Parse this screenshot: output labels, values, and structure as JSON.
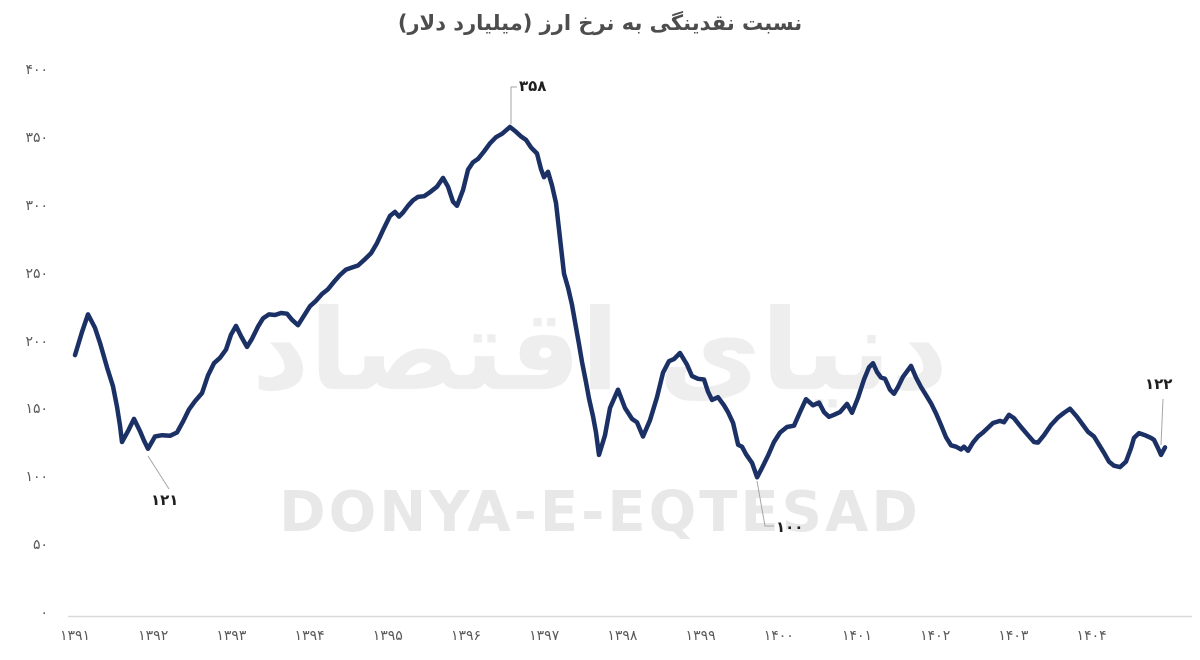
{
  "colors": {
    "line": "#1b3064",
    "title_text": "#4d4d4d",
    "tick_text": "#595959",
    "axis_line": "#d9d9d9",
    "annotation_text": "#1f1f1f",
    "leader_line": "#a6a6a6",
    "watermark": "#e9e9e9",
    "background": "#ffffff"
  },
  "watermark": {
    "persian": "دنیای اقتصاد",
    "latin": "DONYA-E-EQTESAD"
  },
  "chart_data": {
    "type": "line",
    "title": "نسبت نقدینگی به نرخ ارز (میلیارد دلار)",
    "xlabel": "",
    "ylabel": "",
    "grid": false,
    "legend": "none",
    "ylim": [
      0,
      400
    ],
    "xlim": [
      1391,
      1405.3
    ],
    "y_ticks": [
      "۴۰۰",
      "۳۵۰",
      "۳۰۰",
      "۲۵۰",
      "۲۰۰",
      "۱۵۰",
      "۱۰۰",
      "۵۰",
      "۰"
    ],
    "y_tick_values": [
      400,
      350,
      300,
      250,
      200,
      150,
      100,
      50,
      0
    ],
    "x_ticks": [
      "۱۳۹۱",
      "۱۳۹۲",
      "۱۳۹۳",
      "۱۳۹۴",
      "۱۳۹۵",
      "۱۳۹۶",
      "۱۳۹۷",
      "۱۳۹۸",
      "۱۳۹۹",
      "۱۴۰۰",
      "۱۴۰۱",
      "۱۴۰۲",
      "۱۴۰۳",
      "۱۴۰۴"
    ],
    "x_tick_values": [
      1391,
      1392,
      1393,
      1394,
      1395,
      1396,
      1397,
      1398,
      1399,
      1400,
      1401,
      1402,
      1403,
      1404
    ],
    "annotations": {
      "peak": {
        "label": "۳۵۸",
        "value": 358,
        "year": 1396.56
      },
      "dip_1391": {
        "label": "۱۲۱",
        "value": 121,
        "year": 1391.93
      },
      "dip_1399": {
        "label": "۱۰۰",
        "value": 100,
        "year": 1399.72
      },
      "latest": {
        "label": "۱۲۲",
        "value": 122,
        "year": 1404.94
      }
    },
    "points": [
      [
        1391.0,
        190
      ],
      [
        1391.09,
        207
      ],
      [
        1391.166,
        220
      ],
      [
        1391.256,
        210
      ],
      [
        1391.32,
        199
      ],
      [
        1391.409,
        181
      ],
      [
        1391.486,
        167
      ],
      [
        1391.537,
        152
      ],
      [
        1391.575,
        138
      ],
      [
        1391.601,
        126
      ],
      [
        1391.678,
        134
      ],
      [
        1391.754,
        143
      ],
      [
        1391.831,
        134
      ],
      [
        1391.882,
        127
      ],
      [
        1391.934,
        121
      ],
      [
        1392.023,
        130
      ],
      [
        1392.113,
        131
      ],
      [
        1392.215,
        130.5
      ],
      [
        1392.304,
        133
      ],
      [
        1392.381,
        141
      ],
      [
        1392.458,
        150
      ],
      [
        1392.535,
        156
      ],
      [
        1392.624,
        162
      ],
      [
        1392.701,
        175
      ],
      [
        1392.778,
        184
      ],
      [
        1392.854,
        188
      ],
      [
        1392.931,
        194
      ],
      [
        1392.995,
        205
      ],
      [
        1393.059,
        211.5
      ],
      [
        1393.123,
        204
      ],
      [
        1393.2,
        196
      ],
      [
        1393.264,
        202
      ],
      [
        1393.34,
        211
      ],
      [
        1393.404,
        217
      ],
      [
        1393.481,
        220
      ],
      [
        1393.558,
        219.5
      ],
      [
        1393.634,
        221
      ],
      [
        1393.711,
        220.5
      ],
      [
        1393.775,
        216
      ],
      [
        1393.852,
        212
      ],
      [
        1393.929,
        219
      ],
      [
        1394.005,
        226
      ],
      [
        1394.082,
        230
      ],
      [
        1394.159,
        235
      ],
      [
        1394.235,
        238.5
      ],
      [
        1394.312,
        244
      ],
      [
        1394.389,
        249
      ],
      [
        1394.465,
        253
      ],
      [
        1394.542,
        254.5
      ],
      [
        1394.619,
        256
      ],
      [
        1394.696,
        260
      ],
      [
        1394.785,
        265
      ],
      [
        1394.862,
        272.5
      ],
      [
        1394.939,
        282
      ],
      [
        1395.028,
        292.5
      ],
      [
        1395.092,
        295.5
      ],
      [
        1395.143,
        292
      ],
      [
        1395.194,
        295
      ],
      [
        1395.258,
        300
      ],
      [
        1395.322,
        304
      ],
      [
        1395.386,
        306.5
      ],
      [
        1395.463,
        307
      ],
      [
        1395.54,
        310
      ],
      [
        1395.629,
        314
      ],
      [
        1395.706,
        320.5
      ],
      [
        1395.77,
        314
      ],
      [
        1395.834,
        303
      ],
      [
        1395.885,
        300
      ],
      [
        1395.962,
        311.5
      ],
      [
        1396.026,
        326.5
      ],
      [
        1396.09,
        332
      ],
      [
        1396.154,
        334.5
      ],
      [
        1396.23,
        340
      ],
      [
        1396.307,
        346
      ],
      [
        1396.384,
        350.5
      ],
      [
        1396.46,
        353
      ],
      [
        1396.563,
        358
      ],
      [
        1396.64,
        354.5
      ],
      [
        1396.704,
        351
      ],
      [
        1396.767,
        348.5
      ],
      [
        1396.831,
        343
      ],
      [
        1396.908,
        338.5
      ],
      [
        1396.959,
        327
      ],
      [
        1396.997,
        321
      ],
      [
        1397.049,
        325
      ],
      [
        1397.1,
        315
      ],
      [
        1397.151,
        302
      ],
      [
        1397.202,
        276
      ],
      [
        1397.253,
        250
      ],
      [
        1397.305,
        239.5
      ],
      [
        1397.356,
        227
      ],
      [
        1397.394,
        214.5
      ],
      [
        1397.445,
        198
      ],
      [
        1397.483,
        185
      ],
      [
        1397.535,
        170
      ],
      [
        1397.573,
        158
      ],
      [
        1397.624,
        145
      ],
      [
        1397.662,
        133
      ],
      [
        1397.701,
        116.5
      ],
      [
        1397.777,
        131
      ],
      [
        1397.841,
        151
      ],
      [
        1397.944,
        164.5
      ],
      [
        1398.033,
        151
      ],
      [
        1398.123,
        143
      ],
      [
        1398.187,
        140.5
      ],
      [
        1398.263,
        130
      ],
      [
        1398.353,
        142
      ],
      [
        1398.442,
        159
      ],
      [
        1398.519,
        177
      ],
      [
        1398.596,
        185.5
      ],
      [
        1398.66,
        187
      ],
      [
        1398.737,
        191.5
      ],
      [
        1398.826,
        183
      ],
      [
        1398.89,
        174.5
      ],
      [
        1398.967,
        172.5
      ],
      [
        1399.044,
        172
      ],
      [
        1399.095,
        163
      ],
      [
        1399.146,
        157
      ],
      [
        1399.223,
        159
      ],
      [
        1399.299,
        153
      ],
      [
        1399.351,
        148
      ],
      [
        1399.415,
        140
      ],
      [
        1399.479,
        124
      ],
      [
        1399.53,
        122.5
      ],
      [
        1399.581,
        117
      ],
      [
        1399.658,
        110.5
      ],
      [
        1399.722,
        100
      ],
      [
        1399.786,
        107
      ],
      [
        1399.863,
        116
      ],
      [
        1399.939,
        126
      ],
      [
        1400.016,
        133
      ],
      [
        1400.105,
        137
      ],
      [
        1400.195,
        138
      ],
      [
        1400.271,
        148
      ],
      [
        1400.348,
        157.5
      ],
      [
        1400.437,
        153
      ],
      [
        1400.514,
        155
      ],
      [
        1400.578,
        148
      ],
      [
        1400.642,
        144.5
      ],
      [
        1400.706,
        146
      ],
      [
        1400.783,
        148
      ],
      [
        1400.872,
        154
      ],
      [
        1400.936,
        147.5
      ],
      [
        1401.013,
        158.5
      ],
      [
        1401.09,
        172
      ],
      [
        1401.154,
        181
      ],
      [
        1401.205,
        184
      ],
      [
        1401.256,
        177.5
      ],
      [
        1401.307,
        173.5
      ],
      [
        1401.358,
        172.5
      ],
      [
        1401.422,
        164.5
      ],
      [
        1401.473,
        161.5
      ],
      [
        1401.524,
        166.5
      ],
      [
        1401.588,
        174
      ],
      [
        1401.691,
        182
      ],
      [
        1401.754,
        173.5
      ],
      [
        1401.818,
        166.5
      ],
      [
        1401.882,
        160.5
      ],
      [
        1401.946,
        154.5
      ],
      [
        1402.01,
        147
      ],
      [
        1402.074,
        138.5
      ],
      [
        1402.138,
        129.5
      ],
      [
        1402.202,
        123.5
      ],
      [
        1402.266,
        122.5
      ],
      [
        1402.33,
        120.5
      ],
      [
        1402.368,
        122.5
      ],
      [
        1402.419,
        119.5
      ],
      [
        1402.483,
        125.5
      ],
      [
        1402.547,
        130
      ],
      [
        1402.611,
        133
      ],
      [
        1402.675,
        136.5
      ],
      [
        1402.739,
        140
      ],
      [
        1402.829,
        141.5
      ],
      [
        1402.88,
        140.5
      ],
      [
        1402.944,
        146
      ],
      [
        1403.008,
        143.5
      ],
      [
        1403.097,
        137
      ],
      [
        1403.187,
        131
      ],
      [
        1403.263,
        126
      ],
      [
        1403.315,
        125.5
      ],
      [
        1403.391,
        131
      ],
      [
        1403.481,
        138.5
      ],
      [
        1403.57,
        144
      ],
      [
        1403.647,
        147.5
      ],
      [
        1403.724,
        150.5
      ],
      [
        1403.813,
        144.5
      ],
      [
        1403.89,
        138.5
      ],
      [
        1403.954,
        133.5
      ],
      [
        1404.031,
        130
      ],
      [
        1404.095,
        124
      ],
      [
        1404.159,
        118
      ],
      [
        1404.223,
        111.5
      ],
      [
        1404.287,
        108.5
      ],
      [
        1404.363,
        107.5
      ],
      [
        1404.44,
        111.5
      ],
      [
        1404.504,
        121.5
      ],
      [
        1404.542,
        129
      ],
      [
        1404.606,
        132.5
      ],
      [
        1404.683,
        131
      ],
      [
        1404.76,
        129
      ],
      [
        1404.798,
        127.5
      ],
      [
        1404.849,
        121.5
      ],
      [
        1404.887,
        116.5
      ],
      [
        1404.939,
        122
      ]
    ]
  }
}
